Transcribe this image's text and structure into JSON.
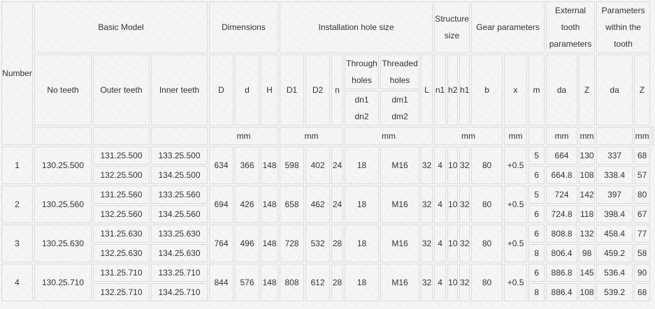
{
  "headers": {
    "number": "Number",
    "basic_model": "Basic Model",
    "dimensions": "Dimensions",
    "installation_hole_size": "Installation hole size",
    "structure_size": [
      "Structure",
      "size"
    ],
    "gear_parameters": "Gear parameters",
    "external_tooth_parameters": [
      "External",
      "tooth",
      "parameters"
    ],
    "parameters_within_tooth": [
      "Parameters",
      "within the",
      "tooth"
    ],
    "no_teeth": "No teeth",
    "outer_teeth": "Outer teeth",
    "inner_teeth": "Inner teeth",
    "D": "D",
    "d": "d",
    "H": "H",
    "D1": "D1",
    "D2": "D2",
    "n": "n",
    "through_holes": [
      "Through",
      "holes"
    ],
    "threaded_holes": [
      "Threaded",
      "holes"
    ],
    "through_sub": [
      "dn1",
      "dn2"
    ],
    "threaded_sub": [
      "dm1",
      "dm2"
    ],
    "L": "L",
    "n1": "n1",
    "h2": "h2",
    "h1": "h1",
    "b": "b",
    "x": "x",
    "m": "m",
    "ext_da": "da",
    "ext_Z": "Z",
    "int_da": "da",
    "int_Z": "Z"
  },
  "units": {
    "dimensions": "mm",
    "installation_1": "mm",
    "installation_2": "mm",
    "structure": "mm",
    "b": "mm",
    "m": "mm",
    "ext_da": "mm",
    "int_da": "mm"
  },
  "rows": [
    {
      "number": "1",
      "no_teeth": "130.25.500",
      "outer": [
        "131.25.500",
        "132.25.500"
      ],
      "inner": [
        "133.25.500",
        "134.25.500"
      ],
      "D": "634",
      "d": "366",
      "H": "148",
      "D1": "598",
      "D2": "402",
      "n": "24",
      "through": "18",
      "threaded": "M16",
      "L": "32",
      "n1": "4",
      "h2": "10",
      "h1": "32",
      "b": "80",
      "x": "+0.5",
      "m": [
        "5",
        "6"
      ],
      "ext_da": [
        "664",
        "664.8"
      ],
      "ext_Z": [
        "130",
        "108"
      ],
      "int_da": [
        "337",
        "338.4"
      ],
      "int_Z": [
        "68",
        "57"
      ]
    },
    {
      "number": "2",
      "no_teeth": "130.25.560",
      "outer": [
        "131.25.560",
        "132.25.560"
      ],
      "inner": [
        "133.25.560",
        "134.25.560"
      ],
      "D": "694",
      "d": "426",
      "H": "148",
      "D1": "658",
      "D2": "462",
      "n": "24",
      "through": "18",
      "threaded": "M16",
      "L": "32",
      "n1": "4",
      "h2": "10",
      "h1": "32",
      "b": "80",
      "x": "+0.5",
      "m": [
        "5",
        "6"
      ],
      "ext_da": [
        "724",
        "724.8"
      ],
      "ext_Z": [
        "142",
        "118"
      ],
      "int_da": [
        "397",
        "398.4"
      ],
      "int_Z": [
        "80",
        "67"
      ]
    },
    {
      "number": "3",
      "no_teeth": "130.25.630",
      "outer": [
        "131.25.630",
        "132.25.630"
      ],
      "inner": [
        "133.25.630",
        "134.25.630"
      ],
      "D": "764",
      "d": "496",
      "H": "148",
      "D1": "728",
      "D2": "532",
      "n": "28",
      "through": "18",
      "threaded": "M16",
      "L": "32",
      "n1": "4",
      "h2": "10",
      "h1": "32",
      "b": "80",
      "x": "+0.5",
      "m": [
        "6",
        "8"
      ],
      "ext_da": [
        "808.8",
        "806.4"
      ],
      "ext_Z": [
        "132",
        "98"
      ],
      "int_da": [
        "458.4",
        "459.2"
      ],
      "int_Z": [
        "77",
        "58"
      ]
    },
    {
      "number": "4",
      "no_teeth": "130.25.710",
      "outer": [
        "131.25.710",
        "132.25.710"
      ],
      "inner": [
        "133.25.710",
        "134.25.710"
      ],
      "D": "844",
      "d": "576",
      "H": "148",
      "D1": "808",
      "D2": "612",
      "n": "28",
      "through": "18",
      "threaded": "M16",
      "L": "32",
      "n1": "4",
      "h2": "10",
      "h1": "32",
      "b": "80",
      "x": "+0.5",
      "m": [
        "6",
        "8"
      ],
      "ext_da": [
        "886.8",
        "886.4"
      ],
      "ext_Z": [
        "145",
        "108"
      ],
      "int_da": [
        "536.4",
        "539.2"
      ],
      "int_Z": [
        "90",
        "68"
      ]
    }
  ]
}
